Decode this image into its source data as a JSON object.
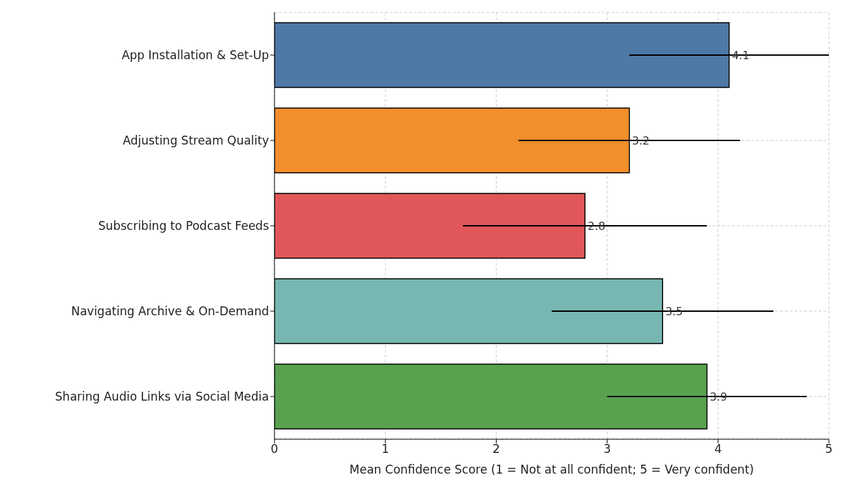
{
  "chart_data": {
    "type": "bar",
    "orientation": "horizontal",
    "xlabel": "Mean Confidence Score (1 = Not at all confident; 5 = Very confident)",
    "categories": [
      "App Installation & Set-Up",
      "Adjusting Stream Quality",
      "Subscribing to Podcast Feeds",
      "Navigating Archive & On-Demand",
      "Sharing Audio Links via Social Media"
    ],
    "values": [
      4.1,
      3.2,
      2.8,
      3.5,
      3.9
    ],
    "errors": [
      0.9,
      1.0,
      1.1,
      1.0,
      0.9
    ],
    "colors": [
      "#4e79a7",
      "#f28e2b",
      "#e15759",
      "#76b7b2",
      "#59a14f"
    ],
    "xlim": [
      0,
      5
    ],
    "xticks": [
      0,
      1,
      2,
      3,
      4,
      5
    ],
    "grid": true,
    "data_labels": true
  }
}
